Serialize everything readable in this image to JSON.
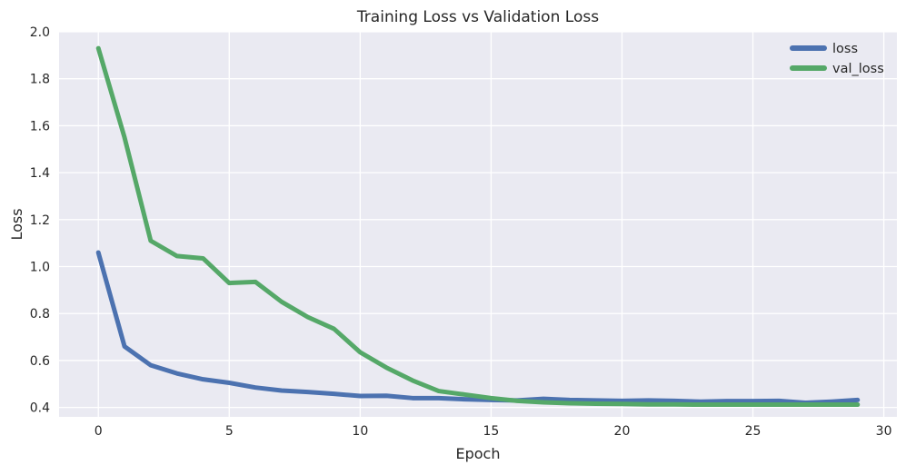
{
  "chart_data": {
    "type": "line",
    "title": "Training Loss vs Validation Loss",
    "xlabel": "Epoch",
    "ylabel": "Loss",
    "xlim": [
      -1.5,
      30.5
    ],
    "ylim": [
      0.36,
      2.0
    ],
    "xticks": [
      0,
      5,
      10,
      15,
      20,
      25,
      30
    ],
    "yticks": [
      0.4,
      0.6,
      0.8,
      1.0,
      1.2,
      1.4,
      1.6,
      1.8,
      2.0
    ],
    "xtick_labels": [
      "0",
      "5",
      "10",
      "15",
      "20",
      "25",
      "30"
    ],
    "ytick_labels": [
      "0.4",
      "0.6",
      "0.8",
      "1.0",
      "1.2",
      "1.4",
      "1.6",
      "1.8",
      "2.0"
    ],
    "grid": true,
    "legend_position": "top-right",
    "x": [
      0,
      1,
      2,
      3,
      4,
      5,
      6,
      7,
      8,
      9,
      10,
      11,
      12,
      13,
      14,
      15,
      16,
      17,
      18,
      19,
      20,
      21,
      22,
      23,
      24,
      25,
      26,
      27,
      28,
      29
    ],
    "series": [
      {
        "name": "loss",
        "color": "#4c72b0",
        "values": [
          1.06,
          0.66,
          0.58,
          0.545,
          0.52,
          0.505,
          0.485,
          0.472,
          0.466,
          0.458,
          0.449,
          0.45,
          0.44,
          0.44,
          0.435,
          0.432,
          0.43,
          0.437,
          0.432,
          0.43,
          0.428,
          0.43,
          0.428,
          0.425,
          0.427,
          0.427,
          0.428,
          0.42,
          0.425,
          0.432
        ]
      },
      {
        "name": "val_loss",
        "color": "#55a868",
        "values": [
          1.93,
          1.55,
          1.11,
          1.045,
          1.035,
          0.93,
          0.935,
          0.85,
          0.785,
          0.735,
          0.635,
          0.57,
          0.515,
          0.47,
          0.455,
          0.44,
          0.428,
          0.422,
          0.418,
          0.416,
          0.415,
          0.413,
          0.413,
          0.412,
          0.412,
          0.412,
          0.412,
          0.412,
          0.412,
          0.412
        ]
      }
    ]
  }
}
